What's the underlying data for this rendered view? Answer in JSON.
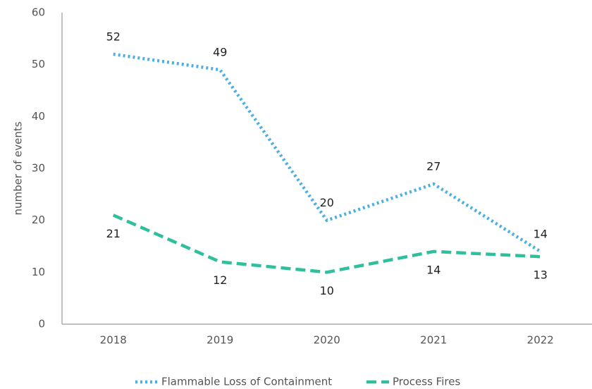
{
  "chart_data": {
    "type": "line",
    "ylabel": "number of events",
    "categories": [
      "2018",
      "2019",
      "2020",
      "2021",
      "2022"
    ],
    "series": [
      {
        "name": "Flammable Loss of Containment",
        "color": "#4bb0e0",
        "dash": "dotted",
        "values": [
          52,
          49,
          20,
          27,
          14
        ]
      },
      {
        "name": "Process Fires",
        "color": "#2fbf9c",
        "dash": "dashed",
        "values": [
          21,
          12,
          10,
          14,
          13
        ]
      }
    ],
    "ylim": [
      0,
      60
    ],
    "yticks": [
      0,
      10,
      20,
      30,
      40,
      50,
      60
    ],
    "grid": false,
    "legend": "bottom"
  }
}
